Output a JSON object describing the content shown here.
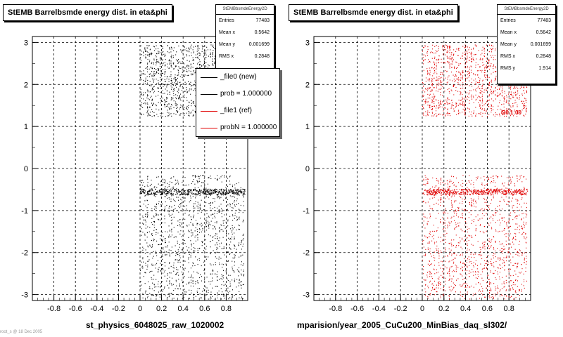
{
  "panels": [
    {
      "title": "StEMB Barrelbsmde energy dist. in eta&phi",
      "xlabel": "st_physics_6048025_raw_1020002",
      "stats": {
        "name": "StEMBbsmdeEnergy2D",
        "rows": [
          {
            "label": "Entries",
            "value": "77483"
          },
          {
            "label": "Mean x",
            "value": "0.5642"
          },
          {
            "label": "Mean y",
            "value": "0.001699"
          },
          {
            "label": "RMS x",
            "value": "0.2848"
          }
        ]
      },
      "legend": [
        {
          "text": "_file0 (new)",
          "color": "#000000"
        },
        {
          "text": "prob = 1.000000",
          "color": "#000000"
        },
        {
          "text": "_file1 (ref)",
          "color": "#e00000"
        },
        {
          "text": "probN = 1.000000",
          "color": "#e00000"
        }
      ]
    },
    {
      "title": "StEMB Barrelbsmde energy dist. in eta&phi",
      "xlabel": "mparision/year_2005_CuCu200_MinBias_daq_sl302/",
      "stats": {
        "name": "StEMBbsmdeEnergy2D",
        "rows": [
          {
            "label": "Entries",
            "value": "77483"
          },
          {
            "label": "Mean x",
            "value": "0.5642"
          },
          {
            "label": "Mean y",
            "value": "0.001699"
          },
          {
            "label": "RMS x",
            "value": "0.2848"
          },
          {
            "label": "RMS y",
            "value": "1.914"
          }
        ]
      },
      "red_label": "G0.1:00"
    }
  ],
  "corner_note": "root_s @ 18 Dec 2005",
  "chart_data": [
    {
      "type": "scatter",
      "title": "StEMB Barrelbsmde energy dist. in eta&phi",
      "xlabel": "st_physics_6048025_raw_1020002",
      "ylabel": "",
      "xlim": [
        -1.0,
        1.0
      ],
      "ylim": [
        -3.14,
        3.14
      ],
      "xticks": [
        -0.8,
        -0.6,
        -0.4,
        -0.2,
        0,
        0.2,
        0.4,
        0.6,
        0.8
      ],
      "yticks": [
        -3,
        -2,
        -1,
        0,
        1,
        2,
        3
      ],
      "grid": true,
      "color": "#000000",
      "regions": [
        {
          "x": [
            0.0,
            0.97
          ],
          "y": [
            1.25,
            2.95
          ]
        },
        {
          "x": [
            0.0,
            0.97
          ],
          "y": [
            -3.1,
            -0.15
          ]
        }
      ],
      "dense_band_y": -0.55
    },
    {
      "type": "scatter",
      "title": "StEMB Barrelbsmde energy dist. in eta&phi",
      "xlabel": "mparision/year_2005_CuCu200_MinBias_daq_sl302/",
      "ylabel": "",
      "xlim": [
        -1.0,
        1.0
      ],
      "ylim": [
        -3.14,
        3.14
      ],
      "xticks": [
        -0.8,
        -0.6,
        -0.4,
        -0.2,
        0,
        0.2,
        0.4,
        0.6,
        0.8
      ],
      "yticks": [
        -3,
        -2,
        -1,
        0,
        1,
        2,
        3
      ],
      "grid": true,
      "color": "#e00000",
      "regions": [
        {
          "x": [
            0.0,
            0.97
          ],
          "y": [
            1.25,
            2.95
          ]
        },
        {
          "x": [
            0.0,
            0.97
          ],
          "y": [
            -3.1,
            -0.15
          ]
        }
      ],
      "dense_band_y": -0.55
    }
  ]
}
